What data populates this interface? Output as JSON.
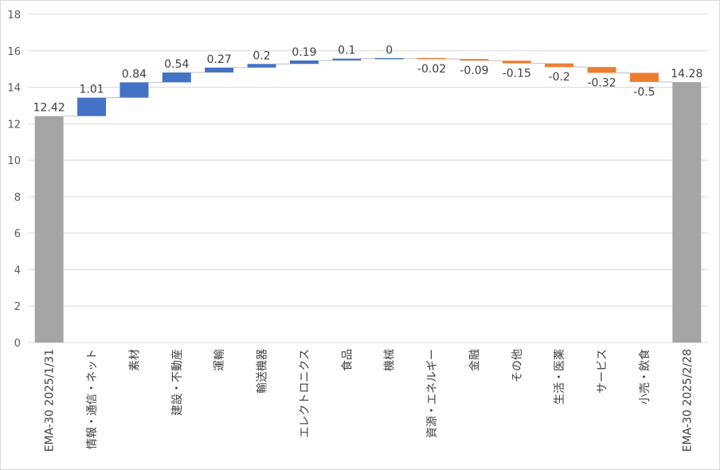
{
  "chart_data": {
    "type": "bar",
    "subtype": "waterfall",
    "title": "",
    "xlabel": "",
    "ylabel": "",
    "ylim": [
      0,
      18
    ],
    "yticks": [
      "0",
      "2",
      "4",
      "6",
      "8",
      "10",
      "12",
      "14",
      "16",
      "18"
    ],
    "grid": true,
    "legend": "none",
    "categories": [
      "EMA-30 2025/1/31",
      "情報・通信・ネット",
      "素材",
      "建設・不動産",
      "運輸",
      "輸送機器",
      "エレクトロニクス",
      "食品",
      "機械",
      "資源・エネルギー",
      "金融",
      "その他",
      "生活・医薬",
      "サービス",
      "小売・飲食",
      "EMA-30 2025/2/28"
    ],
    "values": [
      12.42,
      1.01,
      0.84,
      0.54,
      0.27,
      0.2,
      0.19,
      0.1,
      0,
      -0.02,
      -0.09,
      -0.15,
      -0.2,
      -0.32,
      -0.5,
      14.28
    ],
    "labels": [
      "12.42",
      "1.01",
      "0.84",
      "0.54",
      "0.27",
      "0.2",
      "0.19",
      "0.1",
      "0",
      "-0.02",
      "-0.09",
      "-0.15",
      "-0.2",
      "-0.32",
      "-0.5",
      "14.28"
    ],
    "kinds": [
      "total",
      "up",
      "up",
      "up",
      "up",
      "up",
      "up",
      "up",
      "up",
      "down",
      "down",
      "down",
      "down",
      "down",
      "down",
      "total"
    ],
    "colors": {
      "total": "#a5a5a5",
      "up": "#4472c4",
      "down": "#ed7d31",
      "grid": "#d9d9d9",
      "text": "#404040",
      "connector": "#bfbfbf"
    }
  }
}
